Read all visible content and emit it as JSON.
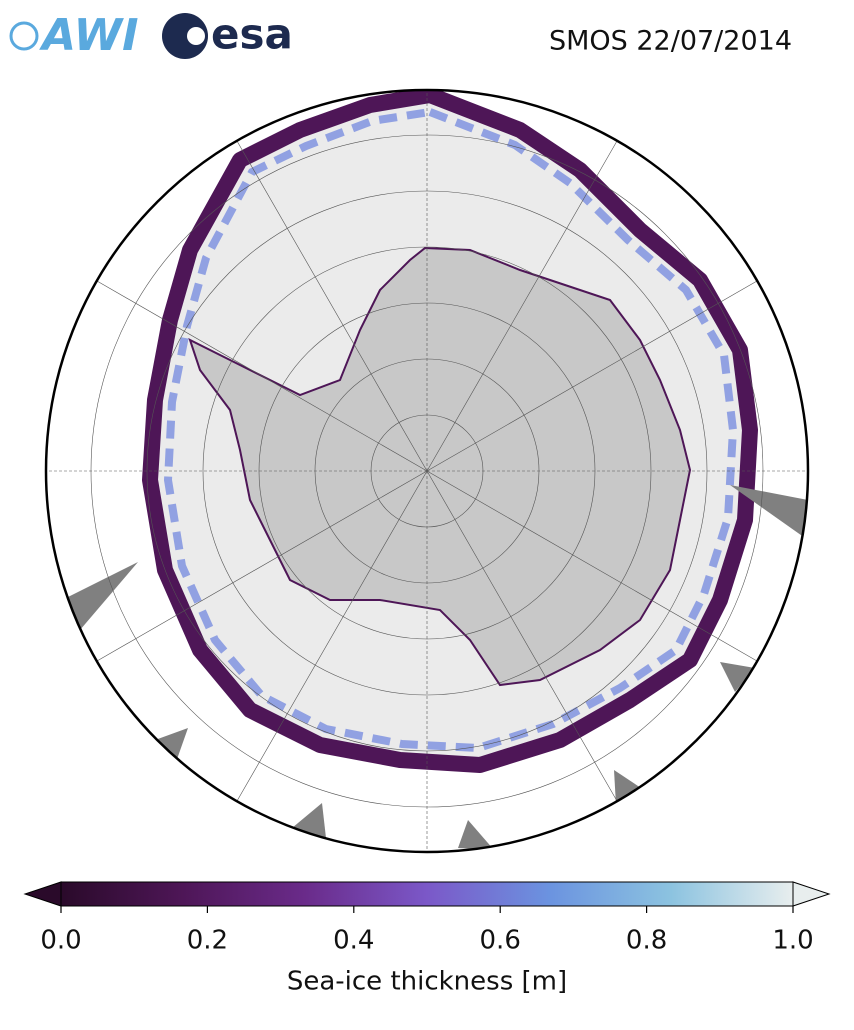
{
  "logos": {
    "awi": "AWI",
    "esa": "esa"
  },
  "header": {
    "title": "SMOS 22/07/2014"
  },
  "colorbar": {
    "label": "Sea-ice thickness [m]",
    "lim": [
      0,
      1
    ],
    "ticks": [
      {
        "value": 0,
        "label": "0.0"
      },
      0.2,
      0.4,
      0.6,
      0.8,
      {
        "value": 1,
        "label": "1.0"
      }
    ],
    "colormap": [
      "#2a0a2a",
      "#4e1657",
      "#6a2b8a",
      "#7b58c8",
      "#6b93e0",
      "#8cc3e0",
      "#e8eeee"
    ],
    "extend": "both"
  }
}
